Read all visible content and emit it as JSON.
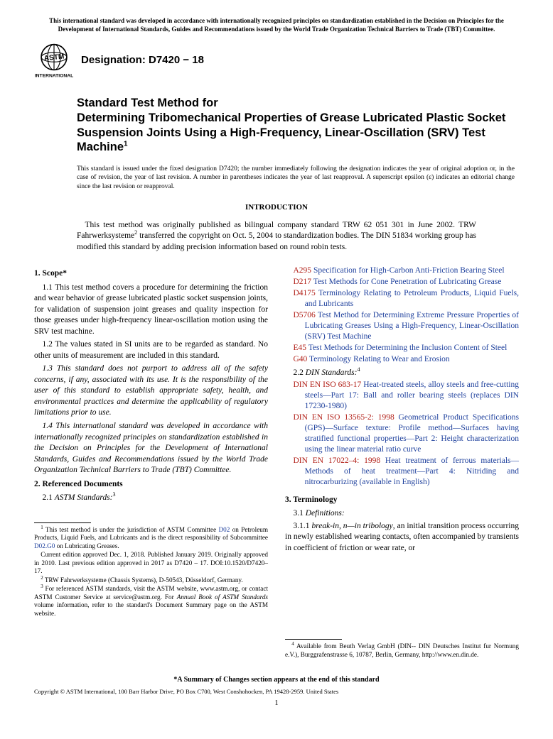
{
  "top_notice": "This international standard was developed in accordance with internationally recognized principles on standardization established in the Decision on Principles for the Development of International Standards, Guides and Recommendations issued by the World Trade Organization Technical Barriers to Trade (TBT) Committee.",
  "designation": "Designation: D7420 − 18",
  "title_line1": "Standard Test Method for",
  "title_line2": "Determining Tribomechanical Properties of Grease Lubricated Plastic Socket Suspension Joints Using a High-Frequency, Linear-Oscillation (SRV) Test Machine",
  "title_sup": "1",
  "issue_note": "This standard is issued under the fixed designation D7420; the number immediately following the designation indicates the year of original adoption or, in the case of revision, the year of last revision. A number in parentheses indicates the year of last reapproval. A superscript epsilon (ε) indicates an editorial change since the last revision or reapproval.",
  "intro_heading": "INTRODUCTION",
  "intro_text_a": "This test method was originally published as bilingual company standard TRW 62 051 301 in June 2002. TRW Fahrwerksysteme",
  "intro_text_b": " transferred the copyright on Oct. 5, 2004 to standardization bodies. The DIN 51834 working group has modified this standard by adding precision information based on round robin tests.",
  "s1_heading": "1. Scope*",
  "s1_1": "1.1 This test method covers a procedure for determining the friction and wear behavior of grease lubricated plastic socket suspension joints, for validation of suspension joint greases and quality inspection for those greases under high-frequency linear-oscillation motion using the SRV test machine.",
  "s1_2": "1.2 The values stated in SI units are to be regarded as standard. No other units of measurement are included in this standard.",
  "s1_3": "1.3 This standard does not purport to address all of the safety concerns, if any, associated with its use. It is the responsibility of the user of this standard to establish appropriate safety, health, and environmental practices and determine the applicability of regulatory limitations prior to use.",
  "s1_4": "1.4 This international standard was developed in accordance with internationally recognized principles on standardization established in the Decision on Principles for the Development of International Standards, Guides and Recommendations issued by the World Trade Organization Technical Barriers to Trade (TBT) Committee.",
  "s2_heading": "2. Referenced Documents",
  "s2_1_label": "2.1 ",
  "s2_1_title": "ASTM Standards:",
  "s2_1_sup": "3",
  "astm_refs": [
    {
      "code": "A295",
      "title": " Specification for High-Carbon Anti-Friction Bearing Steel"
    },
    {
      "code": "D217",
      "title": " Test Methods for Cone Penetration of Lubricating Grease"
    },
    {
      "code": "D4175",
      "title": " Terminology Relating to Petroleum Products, Liquid Fuels, and Lubricants"
    },
    {
      "code": "D5706",
      "title": " Test Method for Determining Extreme Pressure Properties of Lubricating Greases Using a High-Frequency, Linear-Oscillation (SRV) Test Machine"
    },
    {
      "code": "E45",
      "title": " Test Methods for Determining the Inclusion Content of Steel"
    },
    {
      "code": "G40",
      "title": " Terminology Relating to Wear and Erosion"
    }
  ],
  "s2_2_label": "2.2 ",
  "s2_2_title": "DIN Standards:",
  "s2_2_sup": "4",
  "din_refs": [
    {
      "code": "DIN EN ISO 683-17",
      "title": " Heat-treated steels, alloy steels and free-cutting steels—Part 17: Ball and roller bearing steels (replaces DIN 17230-1980)"
    },
    {
      "code": "DIN EN ISO 13565-2: 1998",
      "title": " Geometrical Product Specifications (GPS)—Surface texture: Profile method—Surfaces having stratified functional properties—Part 2: Height characterization using the linear material ratio curve"
    },
    {
      "code": "DIN EN 17022–4: 1998",
      "title": " Heat treatment of ferrous materials—Methods of heat treatment—Part 4: Nitriding and nitrocarburizing (available in English)"
    }
  ],
  "s3_heading": "3. Terminology",
  "s3_1_label": "3.1 ",
  "s3_1_title": "Definitions:",
  "s3_1_1_pre": "3.1.1 ",
  "s3_1_1_term": "break-in, n—in tribology",
  "s3_1_1_body": ", an initial transition process occurring in newly established wearing contacts, often accompanied by transients in coefficient of friction or wear rate, or",
  "fn1_a": " This test method is under the jurisdiction of ASTM Committee ",
  "fn1_link1": "D02",
  "fn1_b": " on Petroleum Products, Liquid Fuels, and Lubricants and is the direct responsibility of Subcommittee ",
  "fn1_link2": "D02.G0",
  "fn1_c": " on Lubricating Greases.",
  "fn1_p2": "Current edition approved Dec. 1, 2018. Published January 2019. Originally approved in 2010. Last previous edition approved in 2017 as D7420 – 17. DOI:10.1520/D7420–17.",
  "fn2": " TRW Fahrwerksysteme (Chassis Systems), D-50543, Düsseldorf, Germany.",
  "fn3_a": " For referenced ASTM standards, visit the ASTM website, www.astm.org, or contact ASTM Customer Service at service@astm.org. For ",
  "fn3_i": "Annual Book of ASTM Standards",
  "fn3_b": " volume information, refer to the standard's Document Summary page on the ASTM website.",
  "fn4": " Available from Beuth Verlag GmbH (DIN-- DIN Deutsches Institut fur Normung e.V.), Burggrafenstrasse 6, 10787, Berlin, Germany, http://www.en.din.de.",
  "bottom_note": "*A Summary of Changes section appears at the end of this standard",
  "copyright": "Copyright © ASTM International, 100 Barr Harbor Drive, PO Box C700, West Conshohocken, PA 19428-2959. United States",
  "page_num": "1",
  "colors": {
    "ref_code": "#b22018",
    "ref_title": "#1d3f9c"
  }
}
